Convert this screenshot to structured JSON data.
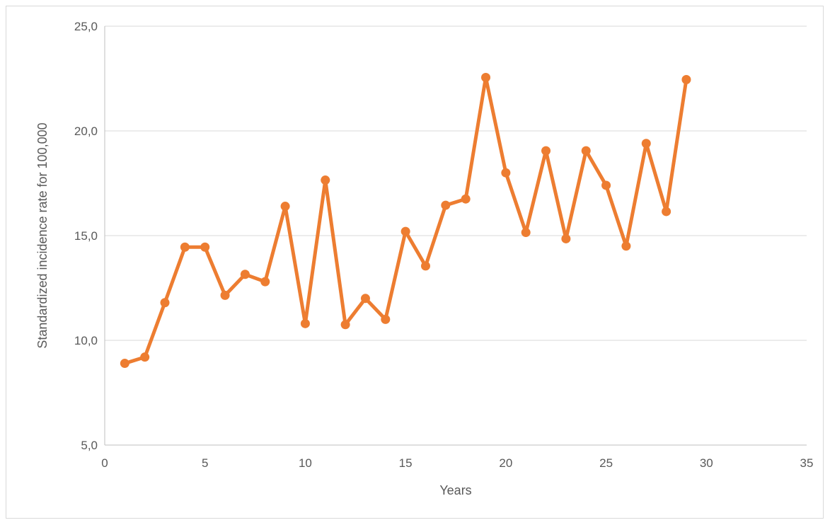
{
  "chart_data": {
    "type": "line",
    "title": "",
    "xlabel": "Years",
    "ylabel": "Standardized incidence rate for 100,000",
    "xlim": [
      0,
      35
    ],
    "ylim": [
      5,
      25
    ],
    "x_ticks": [
      0,
      5,
      10,
      15,
      20,
      25,
      30,
      35
    ],
    "y_ticks": [
      5,
      10,
      15,
      20,
      25
    ],
    "x_tick_labels": [
      "0",
      "5",
      "10",
      "15",
      "20",
      "25",
      "30",
      "35"
    ],
    "y_tick_labels": [
      "5,0",
      "10,0",
      "15,0",
      "20,0",
      "25,0"
    ],
    "grid": {
      "horizontal": true,
      "vertical": false
    },
    "legend": "none",
    "series": [
      {
        "color": "#ed7d31",
        "x": [
          1,
          2,
          3,
          4,
          5,
          6,
          7,
          8,
          9,
          10,
          11,
          12,
          13,
          14,
          15,
          16,
          17,
          18,
          19,
          20,
          21,
          22,
          23,
          24,
          25,
          26,
          27,
          28,
          29
        ],
        "y": [
          8.9,
          9.2,
          11.8,
          14.45,
          14.45,
          12.15,
          13.15,
          12.8,
          16.4,
          10.8,
          17.65,
          10.75,
          12.0,
          11.0,
          15.2,
          13.55,
          16.45,
          16.75,
          22.55,
          18.0,
          15.15,
          19.05,
          14.85,
          19.05,
          17.4,
          14.5,
          19.4,
          16.15,
          22.45
        ]
      }
    ]
  }
}
